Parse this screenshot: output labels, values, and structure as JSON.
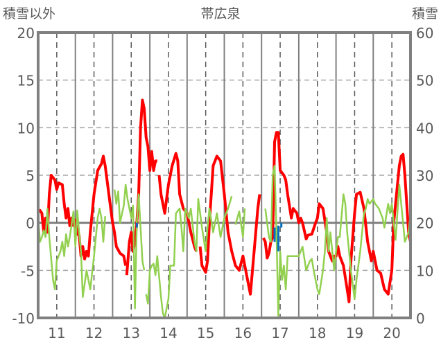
{
  "chart_data": {
    "type": "line",
    "title": "帯広泉",
    "ylabel": "積雪以外",
    "y2label": "積雪",
    "xlim": [
      10.5,
      20.5
    ],
    "ylim": [
      -10,
      20
    ],
    "y2lim": [
      0,
      60
    ],
    "xticks": [
      "11",
      "12",
      "13",
      "14",
      "15",
      "16",
      "17",
      "18",
      "19",
      "20"
    ],
    "yticks": [
      "20",
      "15",
      "10",
      "5",
      "0",
      "-5",
      "-10"
    ],
    "y2ticks": [
      "60",
      "50",
      "40",
      "30",
      "20",
      "10",
      "0"
    ],
    "grid": true,
    "series": [
      {
        "name": "red",
        "color": "#ff0000",
        "axis": "left",
        "points": [
          [
            10.5,
            1.2
          ],
          [
            10.55,
            1.3
          ],
          [
            10.6,
            1.0
          ],
          [
            10.65,
            -1
          ],
          [
            10.7,
            0.5
          ],
          [
            10.75,
            -1
          ],
          [
            10.8,
            3
          ],
          [
            10.85,
            5
          ],
          [
            10.95,
            4.5
          ],
          [
            11.0,
            3.5
          ],
          [
            11.05,
            4.2
          ],
          [
            11.15,
            4
          ],
          [
            11.2,
            2
          ],
          [
            11.25,
            0.5
          ],
          [
            11.3,
            1.5
          ],
          [
            11.35,
            -0.3
          ],
          [
            11.4,
            0.5
          ],
          [
            11.45,
            -0.3
          ],
          [
            11.5,
            0.3
          ],
          [
            11.55,
            -1.2
          ],
          [
            11.6,
            -1.3
          ],
          [
            11.65,
            -3.5
          ],
          [
            11.7,
            -2.5
          ],
          [
            11.75,
            -3.8
          ],
          [
            11.8,
            -3
          ],
          [
            11.85,
            -3.5
          ],
          [
            11.9,
            -1
          ],
          [
            12.0,
            3
          ],
          [
            12.1,
            5.5
          ],
          [
            12.2,
            6.2
          ],
          [
            12.25,
            7
          ],
          [
            12.3,
            6
          ],
          [
            12.4,
            3
          ],
          [
            12.5,
            0
          ],
          [
            12.55,
            -1
          ],
          [
            12.6,
            -2.5
          ],
          [
            12.7,
            -3.2
          ],
          [
            12.8,
            -3.5
          ],
          [
            12.85,
            -4.5
          ],
          null,
          [
            12.88,
            -5.5
          ],
          [
            12.95,
            -2
          ],
          [
            13.0,
            -1
          ],
          [
            13.05,
            -3
          ],
          [
            13.1,
            -2
          ],
          [
            13.15,
            0
          ],
          [
            13.2,
            3
          ],
          [
            13.25,
            10
          ],
          [
            13.3,
            12.9
          ],
          [
            13.35,
            12
          ],
          [
            13.4,
            9
          ],
          [
            13.45,
            8
          ],
          [
            13.5,
            5.5
          ],
          [
            13.55,
            7.5
          ],
          [
            13.6,
            5.5
          ],
          [
            13.65,
            6.5
          ],
          [
            13.7,
            6.5
          ],
          null,
          [
            13.75,
            5
          ],
          [
            13.8,
            3
          ],
          [
            13.85,
            2
          ],
          [
            13.9,
            1
          ],
          [
            14.0,
            4
          ],
          [
            14.1,
            6
          ],
          [
            14.2,
            7.3
          ],
          [
            14.25,
            6.5
          ],
          [
            14.3,
            3
          ],
          [
            14.4,
            1.5
          ],
          [
            14.5,
            1
          ],
          [
            14.6,
            -1
          ],
          [
            14.7,
            -2.5
          ],
          [
            14.75,
            -3
          ],
          null,
          [
            14.85,
            -2.5
          ],
          [
            14.9,
            -4.5
          ],
          [
            15.0,
            -5.2
          ],
          [
            15.05,
            -4
          ],
          [
            15.1,
            0
          ],
          [
            15.2,
            6
          ],
          [
            15.3,
            7
          ],
          [
            15.4,
            6.5
          ],
          [
            15.5,
            3
          ],
          [
            15.6,
            -1
          ],
          [
            15.7,
            -3
          ],
          [
            15.8,
            -4.5
          ],
          [
            15.9,
            -5
          ],
          [
            16.0,
            -3.5
          ],
          [
            16.1,
            -5.5
          ],
          [
            16.2,
            -7.5
          ],
          [
            16.3,
            -3
          ],
          [
            16.4,
            1.5
          ],
          [
            16.45,
            3
          ],
          null,
          [
            16.55,
            -1.6
          ],
          [
            16.6,
            -2
          ],
          [
            16.65,
            -3.7
          ],
          [
            16.7,
            -3.2
          ],
          [
            16.75,
            -2
          ],
          [
            16.8,
            -1.5
          ],
          [
            16.85,
            8.5
          ],
          [
            16.9,
            9.5
          ],
          [
            16.95,
            9.5
          ],
          [
            17.0,
            5.5
          ],
          [
            17.1,
            5
          ],
          [
            17.15,
            4.5
          ],
          [
            17.2,
            3
          ],
          [
            17.3,
            0.5
          ],
          [
            17.35,
            1.5
          ],
          [
            17.45,
            1
          ],
          [
            17.5,
            0
          ],
          [
            17.55,
            0.5
          ],
          [
            17.6,
            0
          ],
          [
            17.7,
            -1.7
          ],
          [
            17.75,
            -1.3
          ],
          [
            17.85,
            -1.2
          ],
          [
            17.95,
            0
          ],
          [
            18.0,
            0.5
          ],
          [
            18.05,
            2
          ],
          [
            18.15,
            1.5
          ],
          [
            18.25,
            -1
          ],
          [
            18.3,
            -3
          ],
          [
            18.4,
            -4
          ],
          [
            18.45,
            -3.5
          ],
          [
            18.5,
            -3.5
          ],
          [
            18.55,
            -2.5
          ],
          [
            18.6,
            -3.5
          ],
          [
            18.7,
            -4.5
          ],
          [
            18.8,
            -7
          ],
          [
            18.85,
            -8.3
          ],
          [
            18.9,
            -4
          ],
          [
            19.0,
            1
          ],
          [
            19.05,
            3
          ],
          [
            19.15,
            3.2
          ],
          [
            19.25,
            1.5
          ],
          [
            19.35,
            -2
          ],
          [
            19.45,
            -4
          ],
          [
            19.5,
            -3
          ],
          [
            19.6,
            -5
          ],
          [
            19.7,
            -5.3
          ],
          [
            19.8,
            -7
          ],
          [
            19.9,
            -7.5
          ],
          [
            20.0,
            -5
          ],
          [
            20.05,
            0
          ],
          [
            20.15,
            4
          ],
          [
            20.2,
            6
          ],
          [
            20.25,
            7
          ],
          [
            20.3,
            7.2
          ],
          [
            20.35,
            5
          ],
          [
            20.45,
            -1
          ],
          [
            20.5,
            -2
          ]
        ]
      },
      {
        "name": "green",
        "color": "#92d050",
        "axis": "left",
        "points": [
          [
            10.5,
            0.5
          ],
          [
            10.55,
            -2
          ],
          [
            10.6,
            -1.5
          ],
          [
            10.65,
            -0.8
          ],
          [
            10.7,
            -1.5
          ],
          [
            10.75,
            1.5
          ],
          [
            10.8,
            -1.5
          ],
          [
            10.9,
            -6
          ],
          [
            10.95,
            -7
          ],
          [
            11.0,
            -4
          ],
          [
            11.1,
            -3
          ],
          [
            11.15,
            -2
          ],
          [
            11.2,
            -3.5
          ],
          [
            11.25,
            -1.2
          ],
          [
            11.3,
            -2.5
          ],
          [
            11.35,
            -1.5
          ],
          [
            11.45,
            1.2
          ],
          [
            11.5,
            -2.5
          ],
          [
            11.55,
            1.3
          ],
          [
            11.6,
            -1
          ],
          [
            11.65,
            -3
          ],
          [
            11.7,
            -7.8
          ],
          [
            11.8,
            -5
          ],
          [
            11.9,
            -7
          ],
          [
            12.0,
            -3.5
          ],
          [
            12.1,
            0.5
          ],
          [
            12.15,
            1.5
          ],
          [
            12.2,
            0.5
          ],
          [
            12.25,
            -2
          ],
          [
            12.3,
            0.7
          ],
          null,
          [
            12.55,
            3.5
          ],
          [
            12.6,
            2
          ],
          [
            12.65,
            3.3
          ],
          [
            12.7,
            0
          ],
          [
            12.8,
            1.8
          ],
          [
            12.85,
            4
          ],
          [
            12.9,
            2.5
          ],
          [
            13.0,
            0.5
          ],
          [
            13.05,
            1.8
          ],
          [
            13.1,
            -9
          ],
          [
            13.15,
            0
          ],
          [
            13.2,
            3
          ],
          [
            13.3,
            -4
          ],
          [
            13.35,
            -5
          ],
          null,
          [
            13.4,
            -7.5
          ],
          [
            13.45,
            -8.5
          ],
          [
            13.5,
            -5
          ],
          [
            13.55,
            -4.5
          ],
          [
            13.6,
            -4.3
          ],
          [
            13.65,
            -5.5
          ],
          [
            13.7,
            -3.5
          ],
          [
            13.8,
            -7.8
          ],
          [
            13.85,
            -9.5
          ],
          [
            13.9,
            -10
          ],
          [
            14.0,
            -8
          ],
          [
            14.05,
            -4.5
          ],
          [
            14.15,
            -4.5
          ],
          [
            14.2,
            1
          ],
          [
            14.3,
            1.5
          ],
          [
            14.35,
            -0.5
          ],
          [
            14.4,
            -3
          ],
          [
            14.45,
            1.5
          ],
          [
            14.55,
            0.5
          ],
          [
            14.6,
            1.5
          ],
          [
            14.7,
            -2
          ],
          [
            14.75,
            -3
          ],
          [
            14.8,
            2.5
          ],
          [
            14.9,
            -0.5
          ],
          [
            15.0,
            -3
          ],
          [
            15.05,
            -0.5
          ],
          [
            15.1,
            1.5
          ],
          [
            15.2,
            -1
          ],
          [
            15.3,
            1
          ],
          [
            15.4,
            -1.5
          ],
          [
            15.5,
            0.5
          ],
          [
            15.6,
            1.5
          ],
          [
            15.7,
            2.8
          ],
          null,
          [
            15.8,
            -0.2
          ],
          [
            15.9,
            1.2
          ],
          [
            16.0,
            -1.5
          ],
          [
            16.05,
            1.5
          ],
          null,
          [
            16.6,
            1.5
          ],
          [
            16.7,
            -1.5
          ],
          [
            16.75,
            -2
          ],
          [
            16.8,
            5
          ],
          [
            16.85,
            6
          ],
          [
            16.9,
            -1
          ],
          [
            16.95,
            -9.8
          ],
          [
            17.0,
            -3
          ],
          [
            17.05,
            -6
          ],
          [
            17.1,
            -4.5
          ],
          [
            17.15,
            -7
          ],
          [
            17.2,
            -3.5
          ],
          [
            17.4,
            -3.5
          ],
          [
            17.5,
            -3.5
          ],
          [
            17.6,
            -2.5
          ],
          [
            17.7,
            -5
          ],
          [
            17.8,
            -4
          ],
          [
            17.85,
            -3.8
          ],
          [
            17.9,
            -5
          ],
          [
            18.0,
            -7
          ],
          [
            18.05,
            -7.5
          ],
          [
            18.15,
            -5
          ],
          [
            18.2,
            -3
          ],
          [
            18.25,
            0.5
          ],
          [
            18.3,
            -3
          ],
          [
            18.35,
            -1
          ],
          [
            18.45,
            -5
          ],
          [
            18.5,
            -3
          ],
          [
            18.55,
            -1.5
          ],
          [
            18.6,
            -1.5
          ],
          [
            18.7,
            3
          ],
          [
            18.75,
            2
          ],
          [
            18.8,
            -1
          ],
          [
            18.9,
            -5
          ],
          [
            19.0,
            -8
          ],
          [
            19.05,
            -6
          ],
          [
            19.15,
            -3
          ],
          [
            19.25,
            1
          ],
          [
            19.3,
            1.5
          ],
          [
            19.35,
            2.5
          ],
          [
            19.4,
            2
          ],
          [
            19.5,
            2.5
          ],
          [
            19.55,
            2
          ],
          [
            19.65,
            1.5
          ],
          [
            19.75,
            0.5
          ],
          [
            19.8,
            -0.5
          ],
          [
            19.9,
            2
          ],
          [
            19.95,
            1
          ],
          [
            20.0,
            2
          ],
          [
            20.1,
            -1.8
          ],
          [
            20.2,
            4
          ],
          [
            20.3,
            0
          ],
          [
            20.35,
            -2
          ],
          [
            20.45,
            -1
          ],
          [
            20.5,
            1
          ]
        ]
      },
      {
        "name": "blue",
        "color": "#0070c0",
        "axis": "left",
        "points": [
          [
            13.15,
            0
          ],
          [
            13.15,
            -0.5
          ],
          null,
          [
            16.85,
            -0.5
          ],
          [
            16.85,
            -2
          ],
          null,
          [
            16.95,
            -0.3
          ],
          [
            16.95,
            -3
          ],
          null,
          [
            17.03,
            0
          ],
          [
            17.03,
            -0.5
          ]
        ]
      },
      {
        "name": "purple",
        "color": "#7030a0",
        "axis": "right",
        "points": [
          [
            10.5,
            0
          ],
          [
            12.55,
            0
          ],
          null,
          [
            12.58,
            0
          ],
          [
            13.45,
            0
          ],
          null,
          [
            13.48,
            0
          ],
          [
            14.52,
            0
          ],
          null,
          [
            14.55,
            0
          ],
          [
            15.95,
            0
          ],
          null,
          [
            16.5,
            0
          ],
          [
            20.5,
            0
          ]
        ]
      }
    ]
  }
}
